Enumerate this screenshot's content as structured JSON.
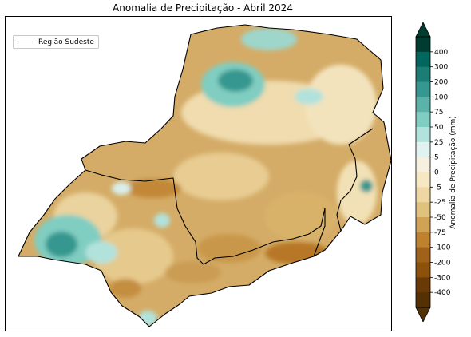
{
  "title": "Anomalia de Precipitação - Abril 2024",
  "legend": {
    "label": "Região Sudeste"
  },
  "colorbar": {
    "label": "Anomalia de Precipitação (mm)",
    "ticks": [
      "400",
      "300",
      "200",
      "100",
      "75",
      "50",
      "25",
      "5",
      "0",
      "-5",
      "-25",
      "-50",
      "-75",
      "-100",
      "-200",
      "-300",
      "-400"
    ],
    "colors": [
      "#003c30",
      "#01665e",
      "#1c7d74",
      "#35978f",
      "#5ab2a8",
      "#80cdc1",
      "#b2e2dc",
      "#e0f3f0",
      "#f6f0e0",
      "#f6e8c3",
      "#eed7a2",
      "#dfc27d",
      "#cfa256",
      "#bf812d",
      "#a0621b",
      "#8c510a",
      "#6a3a06",
      "#543005"
    ]
  },
  "colors": {
    "base_fill": "#d4ac67",
    "region_boundary": "#000000"
  }
}
